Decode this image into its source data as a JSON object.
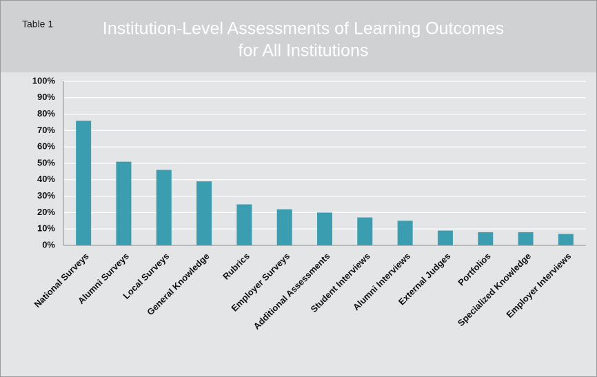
{
  "chart_data": {
    "type": "bar",
    "label": "Table 1",
    "title": [
      "Institution-Level Assessments of Learning Outcomes",
      "for All Institutions"
    ],
    "categories": [
      "National Surveys",
      "Alumni Surveys",
      "Local Surveys",
      "General Knowledge",
      "Rubrics",
      "Employer Surveys",
      "Additional Assessments",
      "Student Interviews",
      "Alumni Interviews",
      "External Judges",
      "Portfolios",
      "Specialized Knowledge",
      "Employer Interviews"
    ],
    "values": [
      76,
      51,
      46,
      39,
      25,
      22,
      20,
      17,
      15,
      9,
      8,
      8,
      7
    ],
    "color": "#3b9db0",
    "ylim": [
      0,
      100
    ],
    "yticks": [
      {
        "value": 0,
        "label": "0%"
      },
      {
        "value": 10,
        "label": "10%"
      },
      {
        "value": 20,
        "label": "20%"
      },
      {
        "value": 30,
        "label": "30%"
      },
      {
        "value": 40,
        "label": "40%"
      },
      {
        "value": 50,
        "label": "50%"
      },
      {
        "value": 60,
        "label": "60%"
      },
      {
        "value": 70,
        "label": "70%"
      },
      {
        "value": 80,
        "label": "80%"
      },
      {
        "value": 90,
        "label": "90%"
      },
      {
        "value": 100,
        "label": "100%"
      }
    ],
    "grid": true
  }
}
